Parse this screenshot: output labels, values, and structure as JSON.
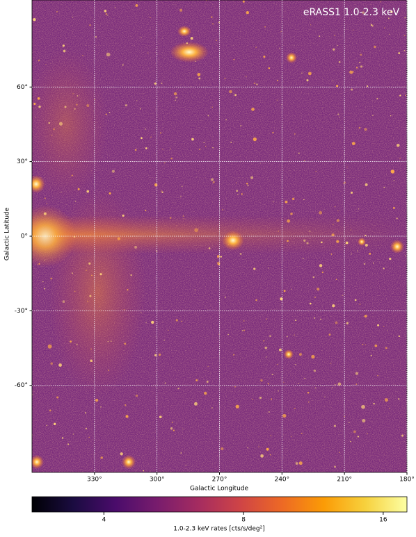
{
  "chart_data": {
    "type": "image",
    "title": "eRASS1 1.0-2.3 keV",
    "x_label": "Galactic Longitude",
    "y_label": "Galactic Latitude",
    "xlim": [
      360,
      180
    ],
    "xticks": [
      {
        "value": 330,
        "label": "330°"
      },
      {
        "value": 300,
        "label": "300°"
      },
      {
        "value": 270,
        "label": "270°"
      },
      {
        "value": 240,
        "label": "240°"
      },
      {
        "value": 210,
        "label": "210°"
      },
      {
        "value": 180,
        "label": "180°"
      }
    ],
    "ylim": [
      -95,
      95
    ],
    "yticks": [
      {
        "value": 60,
        "label": "60°"
      },
      {
        "value": 30,
        "label": "30°"
      },
      {
        "value": 0,
        "label": "0°"
      },
      {
        "value": -30,
        "label": "-30°"
      },
      {
        "value": -60,
        "label": "-60°"
      }
    ],
    "grid": true,
    "colorbar": {
      "label": "1.0-2.3 keV rates [cts/s/deg²]",
      "cmap": "inferno",
      "log_scale": true,
      "lim": [
        2.8,
        18
      ],
      "ticks": [
        4,
        8,
        16
      ]
    }
  }
}
